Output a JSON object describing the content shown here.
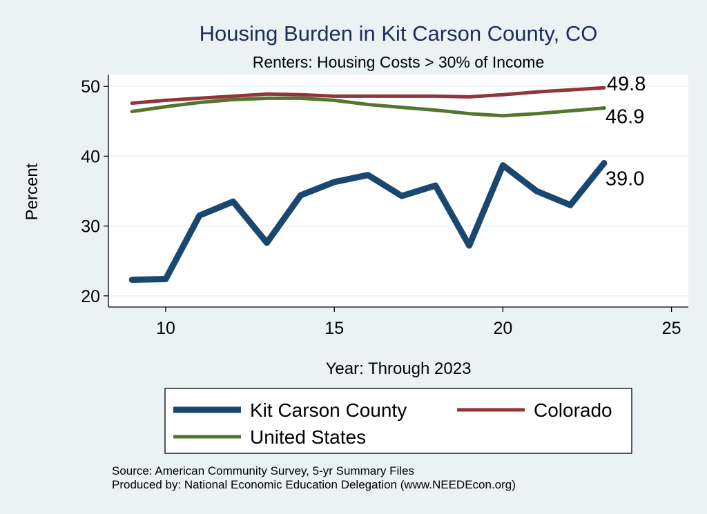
{
  "chart_data": {
    "type": "line",
    "title": "Housing Burden in Kit Carson County, CO",
    "subtitle": "Renters: Housing Costs > 30% of Income",
    "xlabel": "Year: Through 2023",
    "ylabel": "Percent",
    "xlim": [
      8.3,
      25.5
    ],
    "ylim": [
      18.4,
      51.7
    ],
    "xticks": [
      10,
      15,
      20,
      25
    ],
    "yticks": [
      20,
      30,
      40,
      50
    ],
    "grid": true,
    "x": [
      9,
      10,
      11,
      12,
      13,
      14,
      15,
      16,
      17,
      18,
      19,
      20,
      21,
      22,
      23
    ],
    "series": [
      {
        "name": "Kit Carson County",
        "color": "#1a476f",
        "values": [
          22.3,
          22.4,
          31.5,
          33.5,
          27.6,
          34.4,
          36.3,
          37.3,
          34.3,
          35.8,
          27.2,
          38.7,
          35.0,
          33.0,
          39.0
        ],
        "end_label": "39.0"
      },
      {
        "name": "Colorado",
        "color": "#90353b",
        "values": [
          47.6,
          48.0,
          48.3,
          48.6,
          48.9,
          48.8,
          48.6,
          48.6,
          48.6,
          48.6,
          48.5,
          48.8,
          49.2,
          49.5,
          49.8
        ],
        "end_label": "49.8"
      },
      {
        "name": "United States",
        "color": "#55752f",
        "values": [
          46.4,
          47.1,
          47.7,
          48.1,
          48.3,
          48.3,
          48.0,
          47.4,
          47.0,
          46.6,
          46.1,
          45.8,
          46.1,
          46.5,
          46.9
        ],
        "end_label": "46.9"
      }
    ],
    "legend": {
      "placement": "bottom",
      "entries": [
        "Kit Carson County",
        "Colorado",
        "United States"
      ]
    },
    "notes": [
      "Source: American Community Survey, 5-yr Summary Files",
      "Produced by: National Economic Education Delegation (www.NEEDEcon.org)"
    ]
  }
}
